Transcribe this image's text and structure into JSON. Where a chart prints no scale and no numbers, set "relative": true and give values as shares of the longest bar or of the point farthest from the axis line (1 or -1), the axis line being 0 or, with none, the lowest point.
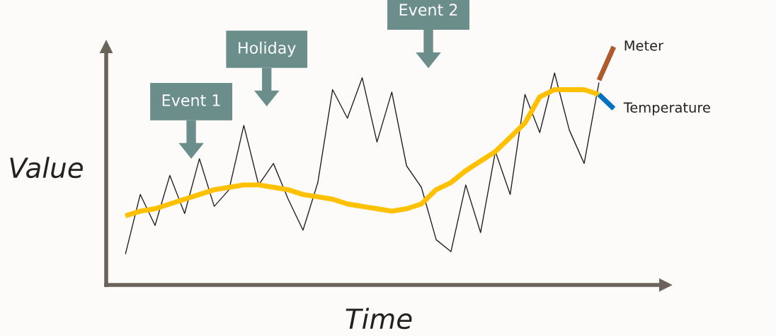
{
  "chart_data": {
    "type": "line",
    "relative": true,
    "xlabel": "Time",
    "ylabel": "Value",
    "categories": [
      null,
      null,
      null,
      null,
      null,
      null,
      null,
      null,
      null,
      null,
      null,
      null,
      null,
      null,
      null,
      null,
      null,
      null,
      null,
      null,
      null,
      null,
      null,
      null,
      null,
      null,
      null,
      null,
      null,
      null,
      null,
      null,
      null,
      null
    ],
    "series": [
      {
        "color": "#222222",
        "values": [
          0.13,
          0.38,
          0.25,
          0.46,
          0.3,
          0.53,
          0.33,
          0.4,
          0.67,
          0.42,
          0.51,
          0.36,
          0.23,
          0.43,
          0.82,
          0.7,
          0.87,
          0.6,
          0.81,
          0.5,
          0.41,
          0.19,
          0.14,
          0.42,
          0.22,
          0.56,
          0.38,
          0.8,
          0.64,
          0.89,
          0.65,
          0.51,
          0.85,
          null
        ]
      },
      {
        "color": "#ffc000",
        "values": [
          0.29,
          0.31,
          0.32,
          0.34,
          0.36,
          0.38,
          0.4,
          0.41,
          0.42,
          0.42,
          0.41,
          0.4,
          0.38,
          0.37,
          0.36,
          0.34,
          0.33,
          0.32,
          0.31,
          0.32,
          0.34,
          0.4,
          0.43,
          0.48,
          0.52,
          0.56,
          0.62,
          0.68,
          0.79,
          0.82,
          0.82,
          0.82,
          0.8,
          null
        ]
      },
      {
        "name": "Meter",
        "color": "#b05a2c",
        "values": [
          null,
          null,
          null,
          null,
          null,
          null,
          null,
          null,
          null,
          null,
          null,
          null,
          null,
          null,
          null,
          null,
          null,
          null,
          null,
          null,
          null,
          null,
          null,
          null,
          null,
          null,
          null,
          null,
          null,
          null,
          null,
          null,
          0.86,
          1.0
        ]
      },
      {
        "name": "Temperature",
        "color": "#0070c0",
        "values": [
          null,
          null,
          null,
          null,
          null,
          null,
          null,
          null,
          null,
          null,
          null,
          null,
          null,
          null,
          null,
          null,
          null,
          null,
          null,
          null,
          null,
          null,
          null,
          null,
          null,
          null,
          null,
          null,
          null,
          null,
          null,
          null,
          0.8,
          0.74
        ]
      }
    ],
    "annotations": [
      "Event 1",
      "Holiday",
      "Event 2"
    ]
  }
}
